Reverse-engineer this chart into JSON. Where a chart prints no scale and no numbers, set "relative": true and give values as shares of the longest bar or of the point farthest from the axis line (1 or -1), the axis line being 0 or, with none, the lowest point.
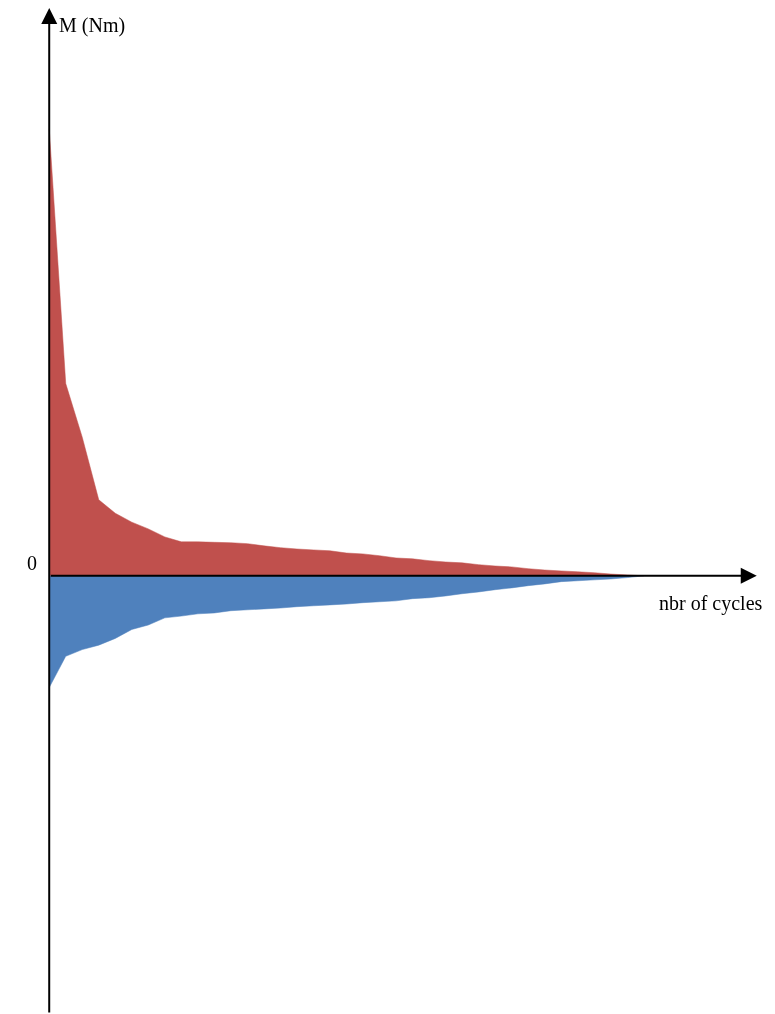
{
  "chart_data": {
    "type": "area",
    "relative": true,
    "xlabel": "nbr of cycles",
    "ylabel": "M (Nm)",
    "annotations": [
      "0"
    ],
    "categories": [
      null,
      null,
      null,
      null,
      null,
      null,
      null,
      null,
      null,
      null,
      null,
      null,
      null,
      null,
      null,
      null,
      null,
      null,
      null,
      null,
      null,
      null,
      null,
      null,
      null,
      null,
      null,
      null,
      null,
      null,
      null,
      null,
      null,
      null,
      null,
      null,
      null
    ],
    "series": [
      {
        "color": "#c0504d",
        "values": [
          1.0,
          0.43,
          0.31,
          0.17,
          0.14,
          0.12,
          0.105,
          0.087,
          0.076,
          0.076,
          0.075,
          0.074,
          0.072,
          0.067,
          0.063,
          0.06,
          0.058,
          0.056,
          0.051,
          0.049,
          0.045,
          0.04,
          0.038,
          0.034,
          0.031,
          0.029,
          0.025,
          0.022,
          0.02,
          0.016,
          0.013,
          0.011,
          0.009,
          0.007,
          0.004,
          0.002,
          0
        ]
      },
      {
        "color": "#4f81bd",
        "values": [
          -0.25,
          -0.18,
          -0.165,
          -0.155,
          -0.14,
          -0.12,
          -0.11,
          -0.094,
          -0.09,
          -0.085,
          -0.083,
          -0.078,
          -0.076,
          -0.074,
          -0.072,
          -0.069,
          -0.067,
          -0.065,
          -0.063,
          -0.06,
          -0.058,
          -0.056,
          -0.051,
          -0.049,
          -0.045,
          -0.04,
          -0.036,
          -0.031,
          -0.027,
          -0.022,
          -0.018,
          -0.013,
          -0.011,
          -0.009,
          -0.007,
          -0.004,
          0
        ]
      }
    ]
  }
}
